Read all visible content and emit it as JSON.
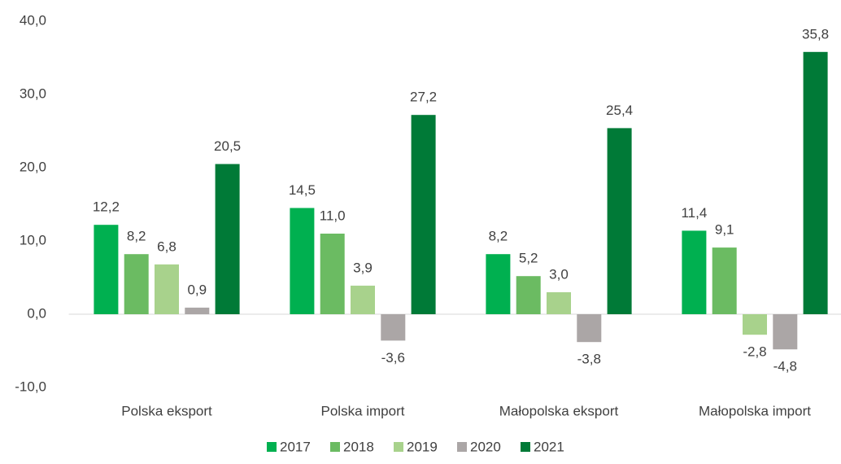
{
  "chart_data": {
    "type": "bar",
    "categories": [
      "Polska eksport",
      "Polska import",
      "Małopolska eksport",
      "Małopolska import"
    ],
    "series": [
      {
        "name": "2017",
        "color": "#00b050",
        "values": [
          12.2,
          14.5,
          8.2,
          11.4
        ],
        "value_labels": [
          "12,2",
          "14,5",
          "8,2",
          "11,4"
        ]
      },
      {
        "name": "2018",
        "color": "#6bbb62",
        "values": [
          8.2,
          11.0,
          5.2,
          9.1
        ],
        "value_labels": [
          "8,2",
          "11,0",
          "5,2",
          "9,1"
        ]
      },
      {
        "name": "2019",
        "color": "#a8d28c",
        "values": [
          6.8,
          3.9,
          3.0,
          -2.8
        ],
        "value_labels": [
          "6,8",
          "3,9",
          "3,0",
          "-2,8"
        ]
      },
      {
        "name": "2020",
        "color": "#aba6a6",
        "values": [
          0.9,
          -3.6,
          -3.8,
          -4.8
        ],
        "value_labels": [
          "0,9",
          "-3,6",
          "-3,8",
          "-4,8"
        ]
      },
      {
        "name": "2021",
        "color": "#007a37",
        "values": [
          20.5,
          27.2,
          25.4,
          35.8
        ],
        "value_labels": [
          "20,5",
          "27,2",
          "25,4",
          "35,8"
        ]
      }
    ],
    "ylim": [
      -10,
      40
    ],
    "yticks": [
      {
        "value": -10,
        "label": "-10,0"
      },
      {
        "value": 0,
        "label": "0,0"
      },
      {
        "value": 10,
        "label": "10,0"
      },
      {
        "value": 20,
        "label": "20,0"
      },
      {
        "value": 30,
        "label": "30,0"
      },
      {
        "value": 40,
        "label": "40,0"
      }
    ],
    "grid": false,
    "legend": "bottom"
  }
}
